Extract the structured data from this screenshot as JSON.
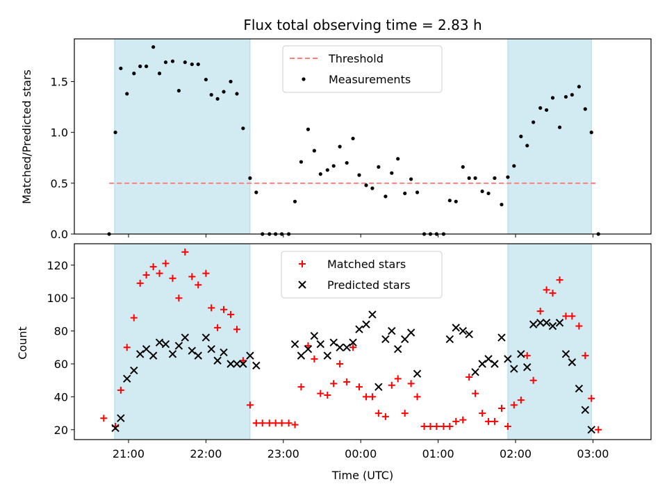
{
  "title": "Flux total observing time = 2.83 h",
  "colors": {
    "band": "#add8e6",
    "threshold": "#ff7f7f",
    "measurement": "#000000",
    "matched": "#ff0000",
    "predicted": "#000000"
  },
  "x_ticks": [
    "21:00",
    "22:00",
    "23:00",
    "00:00",
    "01:00",
    "02:00",
    "03:00"
  ],
  "xlabel": "Time (UTC)",
  "chart_data": [
    {
      "type": "scatter",
      "ylabel": "Matched/Predicted stars",
      "xlim_hours": [
        20.3,
        27.75
      ],
      "ylim": [
        0,
        1.92
      ],
      "y_ticks": [
        "0.0",
        "0.5",
        "1.0",
        "1.5"
      ],
      "y_tick_values": [
        0,
        0.5,
        1.0,
        1.5
      ],
      "legend": [
        "Threshold",
        "Measurements"
      ],
      "legend_position": "upper center",
      "shaded_intervals_hours": [
        [
          20.82,
          22.57
        ],
        [
          25.9,
          26.98
        ]
      ],
      "threshold": {
        "name": "Threshold",
        "y": 0.5,
        "x_range_hours": [
          20.75,
          27.07
        ]
      },
      "series": [
        {
          "name": "Measurements",
          "x_hours": [
            20.75,
            20.83,
            20.9,
            20.98,
            21.07,
            21.15,
            21.23,
            21.32,
            21.4,
            21.48,
            21.57,
            21.65,
            21.73,
            21.82,
            21.9,
            22.0,
            22.07,
            22.15,
            22.23,
            22.32,
            22.4,
            22.48,
            22.57,
            22.65,
            22.73,
            22.82,
            22.9,
            22.98,
            23.07,
            23.15,
            23.23,
            23.32,
            23.4,
            23.48,
            23.57,
            23.65,
            23.73,
            23.82,
            23.9,
            23.98,
            24.07,
            24.15,
            24.23,
            24.32,
            24.4,
            24.48,
            24.57,
            24.65,
            24.73,
            24.82,
            24.9,
            24.98,
            25.07,
            25.15,
            25.23,
            25.32,
            25.4,
            25.48,
            25.57,
            25.65,
            25.73,
            25.82,
            25.9,
            25.98,
            26.07,
            26.15,
            26.23,
            26.32,
            26.4,
            26.48,
            26.57,
            26.65,
            26.73,
            26.82,
            26.9,
            26.98,
            27.07
          ],
          "y": [
            0.0,
            1.0,
            1.63,
            1.38,
            1.58,
            1.65,
            1.65,
            1.84,
            1.58,
            1.69,
            1.7,
            1.41,
            1.69,
            1.67,
            1.67,
            1.52,
            1.37,
            1.33,
            1.4,
            1.5,
            1.38,
            1.04,
            0.55,
            0.41,
            0.0,
            0.0,
            0.0,
            0.0,
            0.0,
            0.32,
            0.71,
            1.03,
            0.82,
            0.59,
            0.63,
            0.67,
            0.86,
            0.7,
            0.94,
            0.58,
            0.48,
            0.45,
            0.66,
            0.37,
            0.6,
            0.74,
            0.4,
            0.54,
            0.41,
            0.0,
            0.0,
            0.0,
            0.0,
            0.33,
            0.32,
            0.66,
            0.55,
            0.55,
            0.42,
            0.4,
            0.55,
            0.29,
            0.56,
            0.67,
            0.96,
            0.87,
            1.1,
            1.24,
            1.22,
            1.34,
            1.05,
            1.35,
            1.37,
            1.45,
            1.23,
            1.0,
            0.0
          ]
        }
      ]
    },
    {
      "type": "scatter",
      "ylabel": "Count",
      "xlim_hours": [
        20.3,
        27.75
      ],
      "ylim": [
        14,
        133
      ],
      "y_ticks": [
        "20",
        "40",
        "60",
        "80",
        "100",
        "120"
      ],
      "y_tick_values": [
        20,
        40,
        60,
        80,
        100,
        120
      ],
      "legend": [
        "Matched stars",
        "Predicted stars"
      ],
      "legend_position": "upper center",
      "shaded_intervals_hours": [
        [
          20.82,
          22.57
        ],
        [
          25.9,
          26.98
        ]
      ],
      "series": [
        {
          "name": "Matched stars",
          "marker": "+",
          "x_hours": [
            20.68,
            20.83,
            20.9,
            20.98,
            21.07,
            21.15,
            21.23,
            21.32,
            21.4,
            21.48,
            21.57,
            21.65,
            21.73,
            21.82,
            21.9,
            22.0,
            22.07,
            22.15,
            22.23,
            22.32,
            22.4,
            22.48,
            22.57,
            22.65,
            22.73,
            22.82,
            22.9,
            22.98,
            23.07,
            23.15,
            23.23,
            23.32,
            23.4,
            23.48,
            23.57,
            23.65,
            23.73,
            23.82,
            23.9,
            23.98,
            24.07,
            24.15,
            24.23,
            24.32,
            24.4,
            24.48,
            24.57,
            24.65,
            24.73,
            24.82,
            24.9,
            24.98,
            25.07,
            25.15,
            25.23,
            25.32,
            25.4,
            25.48,
            25.57,
            25.65,
            25.73,
            25.82,
            25.9,
            25.98,
            26.07,
            26.15,
            26.23,
            26.32,
            26.4,
            26.48,
            26.57,
            26.65,
            26.73,
            26.82,
            26.9,
            26.98,
            27.07
          ],
          "y": [
            27,
            22,
            44,
            70,
            88,
            109,
            114,
            119,
            115,
            121,
            112,
            100,
            128,
            113,
            108,
            115,
            94,
            82,
            93,
            90,
            81,
            62,
            35,
            24,
            24,
            24,
            24,
            24,
            24,
            23,
            46,
            71,
            63,
            42,
            41,
            48,
            60,
            49,
            70,
            46,
            40,
            40,
            30,
            28,
            47,
            51,
            30,
            48,
            40,
            22,
            22,
            22,
            22,
            22,
            25,
            26,
            52,
            42,
            30,
            25,
            25,
            33,
            22,
            35,
            38,
            65,
            50,
            92,
            105,
            103,
            111,
            89,
            89,
            83,
            65,
            39,
            20
          ]
        },
        {
          "name": "Predicted stars",
          "marker": "x",
          "x_hours": [
            20.83,
            20.9,
            20.98,
            21.07,
            21.15,
            21.23,
            21.32,
            21.4,
            21.48,
            21.57,
            21.65,
            21.73,
            21.82,
            21.9,
            22.0,
            22.07,
            22.15,
            22.23,
            22.32,
            22.4,
            22.48,
            22.57,
            22.65,
            23.15,
            23.23,
            23.32,
            23.4,
            23.48,
            23.57,
            23.65,
            23.73,
            23.82,
            23.9,
            23.98,
            24.07,
            24.15,
            24.23,
            24.32,
            24.4,
            24.48,
            24.57,
            24.65,
            24.73,
            25.15,
            25.23,
            25.32,
            25.4,
            25.48,
            25.57,
            25.65,
            25.73,
            25.82,
            25.9,
            25.98,
            26.07,
            26.15,
            26.23,
            26.32,
            26.4,
            26.48,
            26.57,
            26.65,
            26.73,
            26.82,
            26.9,
            26.98
          ],
          "y": [
            21,
            27,
            51,
            56,
            66,
            69,
            65,
            73,
            72,
            66,
            71,
            76,
            68,
            65,
            76,
            69,
            62,
            67,
            60,
            60,
            60,
            65,
            59,
            72,
            65,
            69,
            77,
            72,
            65,
            73,
            70,
            70,
            73,
            81,
            84,
            90,
            46,
            75,
            80,
            69,
            75,
            79,
            54,
            75,
            82,
            80,
            78,
            55,
            60,
            63,
            60,
            76,
            63,
            57,
            66,
            58,
            84,
            85,
            85,
            83,
            85,
            66,
            61,
            45,
            32,
            20
          ]
        }
      ]
    }
  ]
}
